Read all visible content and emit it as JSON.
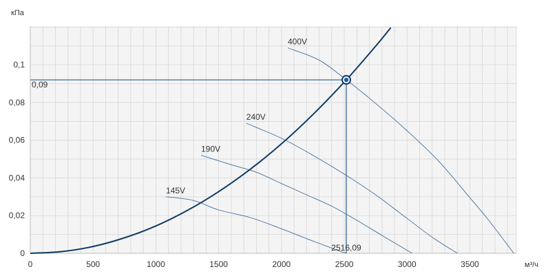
{
  "chart_data": {
    "type": "line",
    "title": "",
    "xlabel": "м³/ч",
    "ylabel": "кПа",
    "xlim": [
      0,
      3870
    ],
    "ylim": [
      0,
      0.1205
    ],
    "x_ticks": [
      0,
      500,
      1000,
      1500,
      2000,
      2500,
      3000,
      3500
    ],
    "x_tick_labels": [
      "0",
      "500",
      "1000",
      "1500",
      "2000",
      "2500",
      "3000",
      "3500"
    ],
    "y_ticks": [
      0,
      0.02,
      0.04,
      0.06,
      0.08,
      0.1
    ],
    "y_tick_labels": [
      "0",
      "0,02",
      "0,04",
      "0,06",
      "0,08",
      "0,1"
    ],
    "grid": true,
    "colors": {
      "grid": "#d6d6d6",
      "plot_bg": "#f4f4f4",
      "system_curve": "#0f3a66",
      "fan_curves": "#3f6f9f",
      "operating_point": "#1d5ea8",
      "guide_lines": "#2a5a8c"
    },
    "system_curve": {
      "name": "",
      "x": [
        0,
        250,
        500,
        750,
        1000,
        1250,
        1500,
        1750,
        2000,
        2250,
        2516.09,
        2750,
        2870
      ],
      "y": [
        0,
        0.0009,
        0.0036,
        0.0082,
        0.0145,
        0.0227,
        0.0327,
        0.0445,
        0.0581,
        0.0736,
        0.092,
        0.1099,
        0.1197
      ]
    },
    "series": [
      {
        "name": "145V",
        "x": [
          1080,
          1300,
          1500,
          1750,
          2000,
          2250,
          2450,
          2516.09
        ],
        "y": [
          0.03,
          0.028,
          0.023,
          0.019,
          0.013,
          0.0065,
          0.0015,
          0
        ]
      },
      {
        "name": "190V",
        "x": [
          1360,
          1600,
          1800,
          2000,
          2200,
          2400,
          2600,
          2800,
          3040
        ],
        "y": [
          0.052,
          0.047,
          0.043,
          0.037,
          0.031,
          0.025,
          0.0175,
          0.0095,
          0
        ]
      },
      {
        "name": "240V",
        "x": [
          1720,
          2000,
          2250,
          2500,
          2750,
          3000,
          3200,
          3400
        ],
        "y": [
          0.069,
          0.061,
          0.052,
          0.042,
          0.031,
          0.0185,
          0.0085,
          0
        ]
      },
      {
        "name": "400V",
        "x": [
          2050,
          2300,
          2516.09,
          2750,
          3000,
          3250,
          3500,
          3650,
          3850
        ],
        "y": [
          0.109,
          0.1025,
          0.092,
          0.0795,
          0.065,
          0.049,
          0.0295,
          0.0175,
          0
        ]
      }
    ],
    "operating_point": {
      "x": 2516.09,
      "y": 0.092,
      "x_label": "2516,09",
      "y_label": "0,09"
    }
  }
}
